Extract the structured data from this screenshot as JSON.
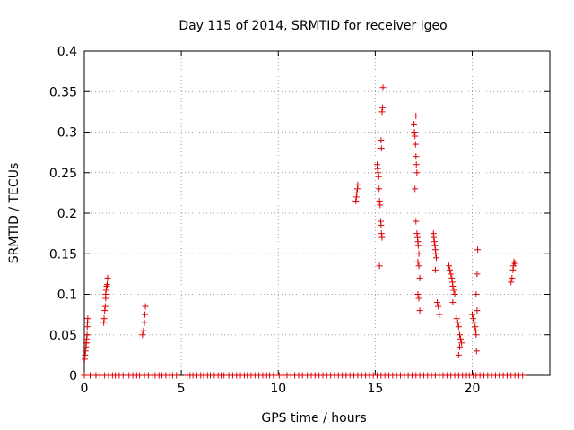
{
  "chart_data": {
    "type": "scatter",
    "title": "Day 115 of 2014, SRMTID for receiver igeo",
    "xlabel": "GPS time / hours",
    "ylabel": "SRMTID / TECUs",
    "xlim": [
      0,
      24
    ],
    "ylim": [
      0,
      0.4
    ],
    "xticks": [
      0,
      5,
      10,
      15,
      20
    ],
    "yticks": [
      0,
      0.05,
      0.1,
      0.15,
      0.2,
      0.25,
      0.3,
      0.35,
      0.4
    ],
    "xtick_labels": [
      "0",
      "5",
      "10",
      "15",
      "20"
    ],
    "ytick_labels": [
      "0",
      "0.05",
      "0.1",
      "0.15",
      "0.2",
      "0.25",
      "0.3",
      "0.35",
      "0.4"
    ],
    "grid": true,
    "marker": "+",
    "color": "#e00000",
    "series": [
      {
        "name": "SRMTID",
        "points": [
          [
            0.02,
            0.02
          ],
          [
            0.04,
            0.025
          ],
          [
            0.06,
            0.03
          ],
          [
            0.08,
            0.035
          ],
          [
            0.1,
            0.04
          ],
          [
            0.12,
            0.045
          ],
          [
            0.14,
            0.05
          ],
          [
            0.16,
            0.065
          ],
          [
            0.18,
            0.07
          ],
          [
            0.1,
            0.04
          ],
          [
            0.15,
            0.06
          ],
          [
            1.0,
            0.065
          ],
          [
            1.02,
            0.07
          ],
          [
            1.05,
            0.08
          ],
          [
            1.08,
            0.085
          ],
          [
            1.1,
            0.095
          ],
          [
            1.12,
            0.105
          ],
          [
            1.15,
            0.11
          ],
          [
            1.18,
            0.112
          ],
          [
            1.2,
            0.12
          ],
          [
            1.1,
            0.1
          ],
          [
            3.0,
            0.05
          ],
          [
            3.05,
            0.055
          ],
          [
            3.1,
            0.065
          ],
          [
            3.12,
            0.075
          ],
          [
            3.15,
            0.085
          ],
          [
            14.0,
            0.215
          ],
          [
            14.03,
            0.22
          ],
          [
            14.05,
            0.225
          ],
          [
            14.08,
            0.23
          ],
          [
            14.1,
            0.235
          ],
          [
            15.1,
            0.26
          ],
          [
            15.12,
            0.255
          ],
          [
            15.15,
            0.25
          ],
          [
            15.18,
            0.245
          ],
          [
            15.2,
            0.23
          ],
          [
            15.22,
            0.215
          ],
          [
            15.25,
            0.21
          ],
          [
            15.28,
            0.19
          ],
          [
            15.3,
            0.185
          ],
          [
            15.32,
            0.175
          ],
          [
            15.35,
            0.17
          ],
          [
            15.22,
            0.135
          ],
          [
            15.3,
            0.29
          ],
          [
            15.32,
            0.28
          ],
          [
            15.35,
            0.325
          ],
          [
            15.38,
            0.33
          ],
          [
            15.4,
            0.355
          ],
          [
            17.0,
            0.31
          ],
          [
            17.02,
            0.3
          ],
          [
            17.05,
            0.295
          ],
          [
            17.08,
            0.285
          ],
          [
            17.1,
            0.27
          ],
          [
            17.12,
            0.26
          ],
          [
            17.15,
            0.25
          ],
          [
            17.05,
            0.23
          ],
          [
            17.1,
            0.19
          ],
          [
            17.15,
            0.175
          ],
          [
            17.18,
            0.17
          ],
          [
            17.2,
            0.165
          ],
          [
            17.22,
            0.16
          ],
          [
            17.25,
            0.15
          ],
          [
            17.2,
            0.14
          ],
          [
            17.25,
            0.135
          ],
          [
            17.3,
            0.12
          ],
          [
            17.2,
            0.1
          ],
          [
            17.25,
            0.095
          ],
          [
            17.3,
            0.08
          ],
          [
            17.1,
            0.32
          ],
          [
            18.0,
            0.175
          ],
          [
            18.02,
            0.17
          ],
          [
            18.05,
            0.165
          ],
          [
            18.08,
            0.16
          ],
          [
            18.1,
            0.155
          ],
          [
            18.12,
            0.15
          ],
          [
            18.15,
            0.145
          ],
          [
            18.1,
            0.13
          ],
          [
            18.2,
            0.09
          ],
          [
            18.25,
            0.085
          ],
          [
            18.3,
            0.075
          ],
          [
            18.8,
            0.135
          ],
          [
            18.85,
            0.13
          ],
          [
            18.9,
            0.125
          ],
          [
            18.95,
            0.12
          ],
          [
            18.98,
            0.115
          ],
          [
            19.0,
            0.11
          ],
          [
            19.05,
            0.105
          ],
          [
            19.1,
            0.1
          ],
          [
            19.0,
            0.09
          ],
          [
            19.2,
            0.07
          ],
          [
            19.25,
            0.065
          ],
          [
            19.3,
            0.06
          ],
          [
            19.35,
            0.05
          ],
          [
            19.4,
            0.045
          ],
          [
            19.45,
            0.04
          ],
          [
            19.3,
            0.025
          ],
          [
            19.35,
            0.035
          ],
          [
            20.0,
            0.075
          ],
          [
            20.05,
            0.07
          ],
          [
            20.1,
            0.065
          ],
          [
            20.15,
            0.06
          ],
          [
            20.18,
            0.055
          ],
          [
            20.2,
            0.05
          ],
          [
            20.22,
            0.03
          ],
          [
            20.25,
            0.08
          ],
          [
            20.2,
            0.1
          ],
          [
            20.25,
            0.125
          ],
          [
            20.28,
            0.155
          ],
          [
            22.0,
            0.115
          ],
          [
            22.05,
            0.12
          ],
          [
            22.1,
            0.13
          ],
          [
            22.12,
            0.135
          ],
          [
            22.15,
            0.14
          ],
          [
            22.2,
            0.138
          ]
        ],
        "zero_points_x": [
          0.0,
          0.3,
          0.6,
          0.8,
          1.05,
          1.25,
          1.45,
          1.6,
          1.8,
          2.0,
          2.15,
          2.3,
          2.5,
          2.7,
          2.85,
          3.1,
          3.3,
          3.5,
          3.65,
          3.85,
          4.0,
          4.2,
          4.4,
          4.55,
          4.75,
          5.3,
          5.45,
          5.6,
          5.8,
          6.0,
          6.15,
          6.35,
          6.5,
          6.7,
          6.9,
          7.05,
          7.2,
          7.45,
          7.65,
          7.85,
          8.05,
          8.25,
          8.4,
          8.6,
          8.8,
          9.0,
          9.2,
          9.4,
          9.55,
          9.75,
          10.05,
          10.25,
          10.45,
          10.65,
          10.85,
          11.05,
          11.25,
          11.5,
          11.7,
          11.9,
          12.1,
          12.3,
          12.5,
          12.7,
          12.9,
          13.1,
          13.3,
          13.5,
          13.7,
          13.9,
          14.1,
          14.3,
          14.5,
          14.7,
          14.9,
          15.1,
          15.3,
          15.5,
          15.7,
          15.9,
          16.1,
          16.3,
          16.5,
          16.7,
          16.9,
          17.1,
          17.3,
          17.5,
          17.7,
          17.9,
          18.1,
          18.3,
          18.5,
          18.7,
          18.9,
          19.1,
          19.3,
          19.5,
          19.7,
          19.85,
          20.05,
          20.2,
          20.4,
          20.6,
          20.8,
          21.0,
          21.2,
          21.4,
          21.6,
          21.8,
          22.0,
          22.2,
          22.4,
          22.6
        ]
      }
    ]
  }
}
